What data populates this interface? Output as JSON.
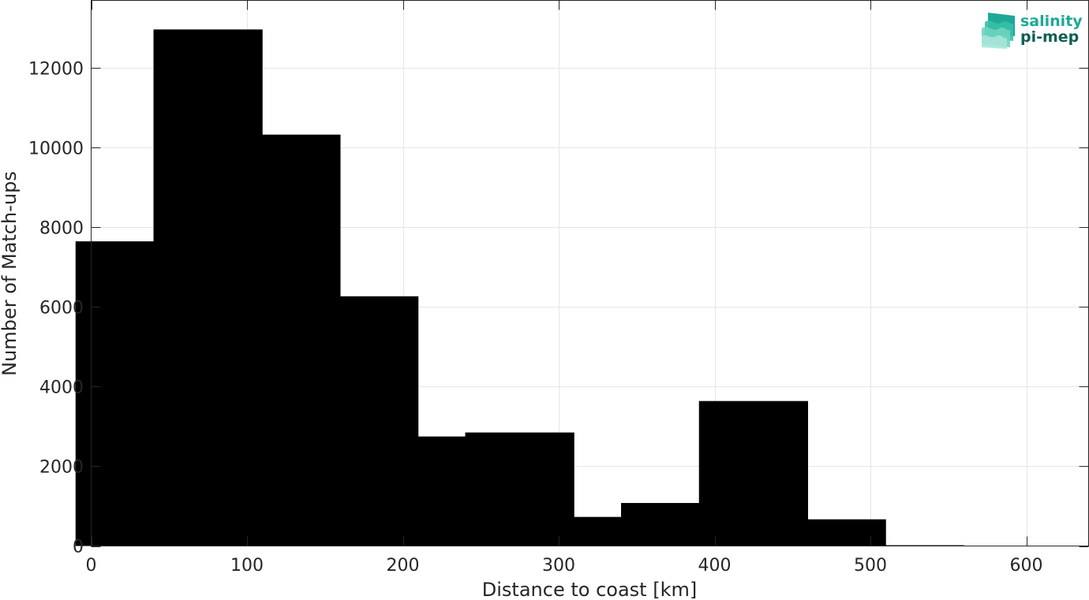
{
  "chart_data": {
    "type": "bar",
    "x": [
      25,
      75,
      125,
      175,
      225,
      275,
      325,
      375,
      425,
      475,
      525
    ],
    "values": [
      7650,
      12970,
      10330,
      6270,
      2750,
      2850,
      730,
      1080,
      3640,
      670,
      20
    ],
    "bar_width": 35,
    "xlabel": "Distance to coast [km]",
    "ylabel": "Number of Match-ups",
    "xlim": [
      0,
      640
    ],
    "ylim": [
      0,
      13700
    ],
    "xticks": [
      0,
      100,
      200,
      300,
      400,
      500,
      600
    ],
    "yticks": [
      0,
      2000,
      4000,
      6000,
      8000,
      10000,
      12000
    ],
    "grid": true,
    "bar_color": "#000000"
  },
  "logo": {
    "line1": "salinity",
    "line2": "pi-mep",
    "color1": "#1fa896",
    "color2": "#0f5f56"
  }
}
